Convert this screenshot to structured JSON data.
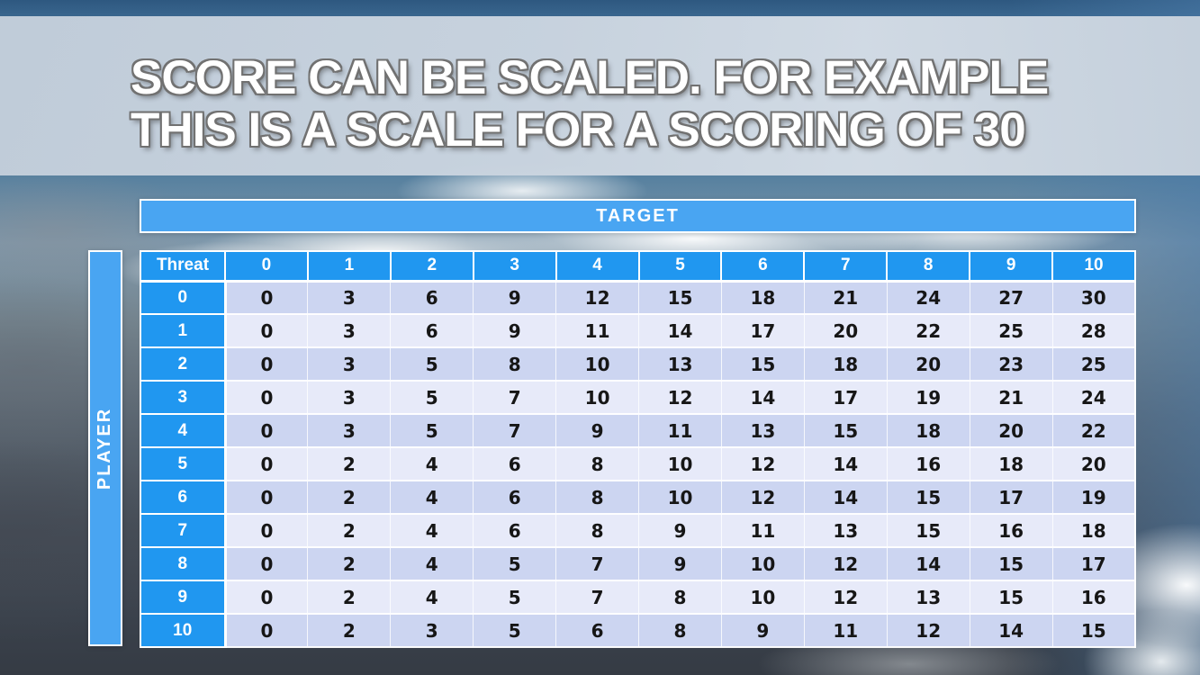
{
  "slide": {
    "title_line1": "SCORE CAN BE SCALED. FOR EXAMPLE",
    "title_line2": "THIS IS A SCALE FOR A SCORING OF 30"
  },
  "matrix": {
    "top_axis_label": "TARGET",
    "left_axis_label": "PLAYER",
    "corner_label": "Threat",
    "column_headers": [
      "0",
      "1",
      "2",
      "3",
      "4",
      "5",
      "6",
      "7",
      "8",
      "9",
      "10"
    ],
    "row_headers": [
      "0",
      "1",
      "2",
      "3",
      "4",
      "5",
      "6",
      "7",
      "8",
      "9",
      "10"
    ],
    "rows": [
      [
        0,
        3,
        6,
        9,
        12,
        15,
        18,
        21,
        24,
        27,
        30
      ],
      [
        0,
        3,
        6,
        9,
        11,
        14,
        17,
        20,
        22,
        25,
        28
      ],
      [
        0,
        3,
        5,
        8,
        10,
        13,
        15,
        18,
        20,
        23,
        25
      ],
      [
        0,
        3,
        5,
        7,
        10,
        12,
        14,
        17,
        19,
        21,
        24
      ],
      [
        0,
        3,
        5,
        7,
        9,
        11,
        13,
        15,
        18,
        20,
        22
      ],
      [
        0,
        2,
        4,
        6,
        8,
        10,
        12,
        14,
        16,
        18,
        20
      ],
      [
        0,
        2,
        4,
        6,
        8,
        10,
        12,
        14,
        15,
        17,
        19
      ],
      [
        0,
        2,
        4,
        6,
        8,
        9,
        11,
        13,
        15,
        16,
        18
      ],
      [
        0,
        2,
        4,
        5,
        7,
        9,
        10,
        12,
        14,
        15,
        17
      ],
      [
        0,
        2,
        4,
        5,
        7,
        8,
        10,
        12,
        13,
        15,
        16
      ],
      [
        0,
        2,
        3,
        5,
        6,
        8,
        9,
        11,
        12,
        14,
        15
      ]
    ]
  },
  "colors": {
    "axis_bar_blue": "#49a5f2",
    "header_cell_blue": "#2097f0",
    "row_dark": "#ccd5f1",
    "row_light": "#e7eaf9",
    "cell_text": "#161616",
    "title_text": "#ffffff",
    "title_outline": "#717171"
  },
  "chart_data": {
    "type": "table",
    "title": "Score scale matrix for a scoring of 30",
    "x_axis_label": "TARGET",
    "y_axis_label": "PLAYER",
    "corner_label": "Threat",
    "columns": [
      0,
      1,
      2,
      3,
      4,
      5,
      6,
      7,
      8,
      9,
      10
    ],
    "row_labels": [
      0,
      1,
      2,
      3,
      4,
      5,
      6,
      7,
      8,
      9,
      10
    ],
    "values": [
      [
        0,
        3,
        6,
        9,
        12,
        15,
        18,
        21,
        24,
        27,
        30
      ],
      [
        0,
        3,
        6,
        9,
        11,
        14,
        17,
        20,
        22,
        25,
        28
      ],
      [
        0,
        3,
        5,
        8,
        10,
        13,
        15,
        18,
        20,
        23,
        25
      ],
      [
        0,
        3,
        5,
        7,
        10,
        12,
        14,
        17,
        19,
        21,
        24
      ],
      [
        0,
        3,
        5,
        7,
        9,
        11,
        13,
        15,
        18,
        20,
        22
      ],
      [
        0,
        2,
        4,
        6,
        8,
        10,
        12,
        14,
        16,
        18,
        20
      ],
      [
        0,
        2,
        4,
        6,
        8,
        10,
        12,
        14,
        15,
        17,
        19
      ],
      [
        0,
        2,
        4,
        6,
        8,
        9,
        11,
        13,
        15,
        16,
        18
      ],
      [
        0,
        2,
        4,
        5,
        7,
        9,
        10,
        12,
        14,
        15,
        17
      ],
      [
        0,
        2,
        4,
        5,
        7,
        8,
        10,
        12,
        13,
        15,
        16
      ],
      [
        0,
        2,
        3,
        5,
        6,
        8,
        9,
        11,
        12,
        14,
        15
      ]
    ]
  }
}
